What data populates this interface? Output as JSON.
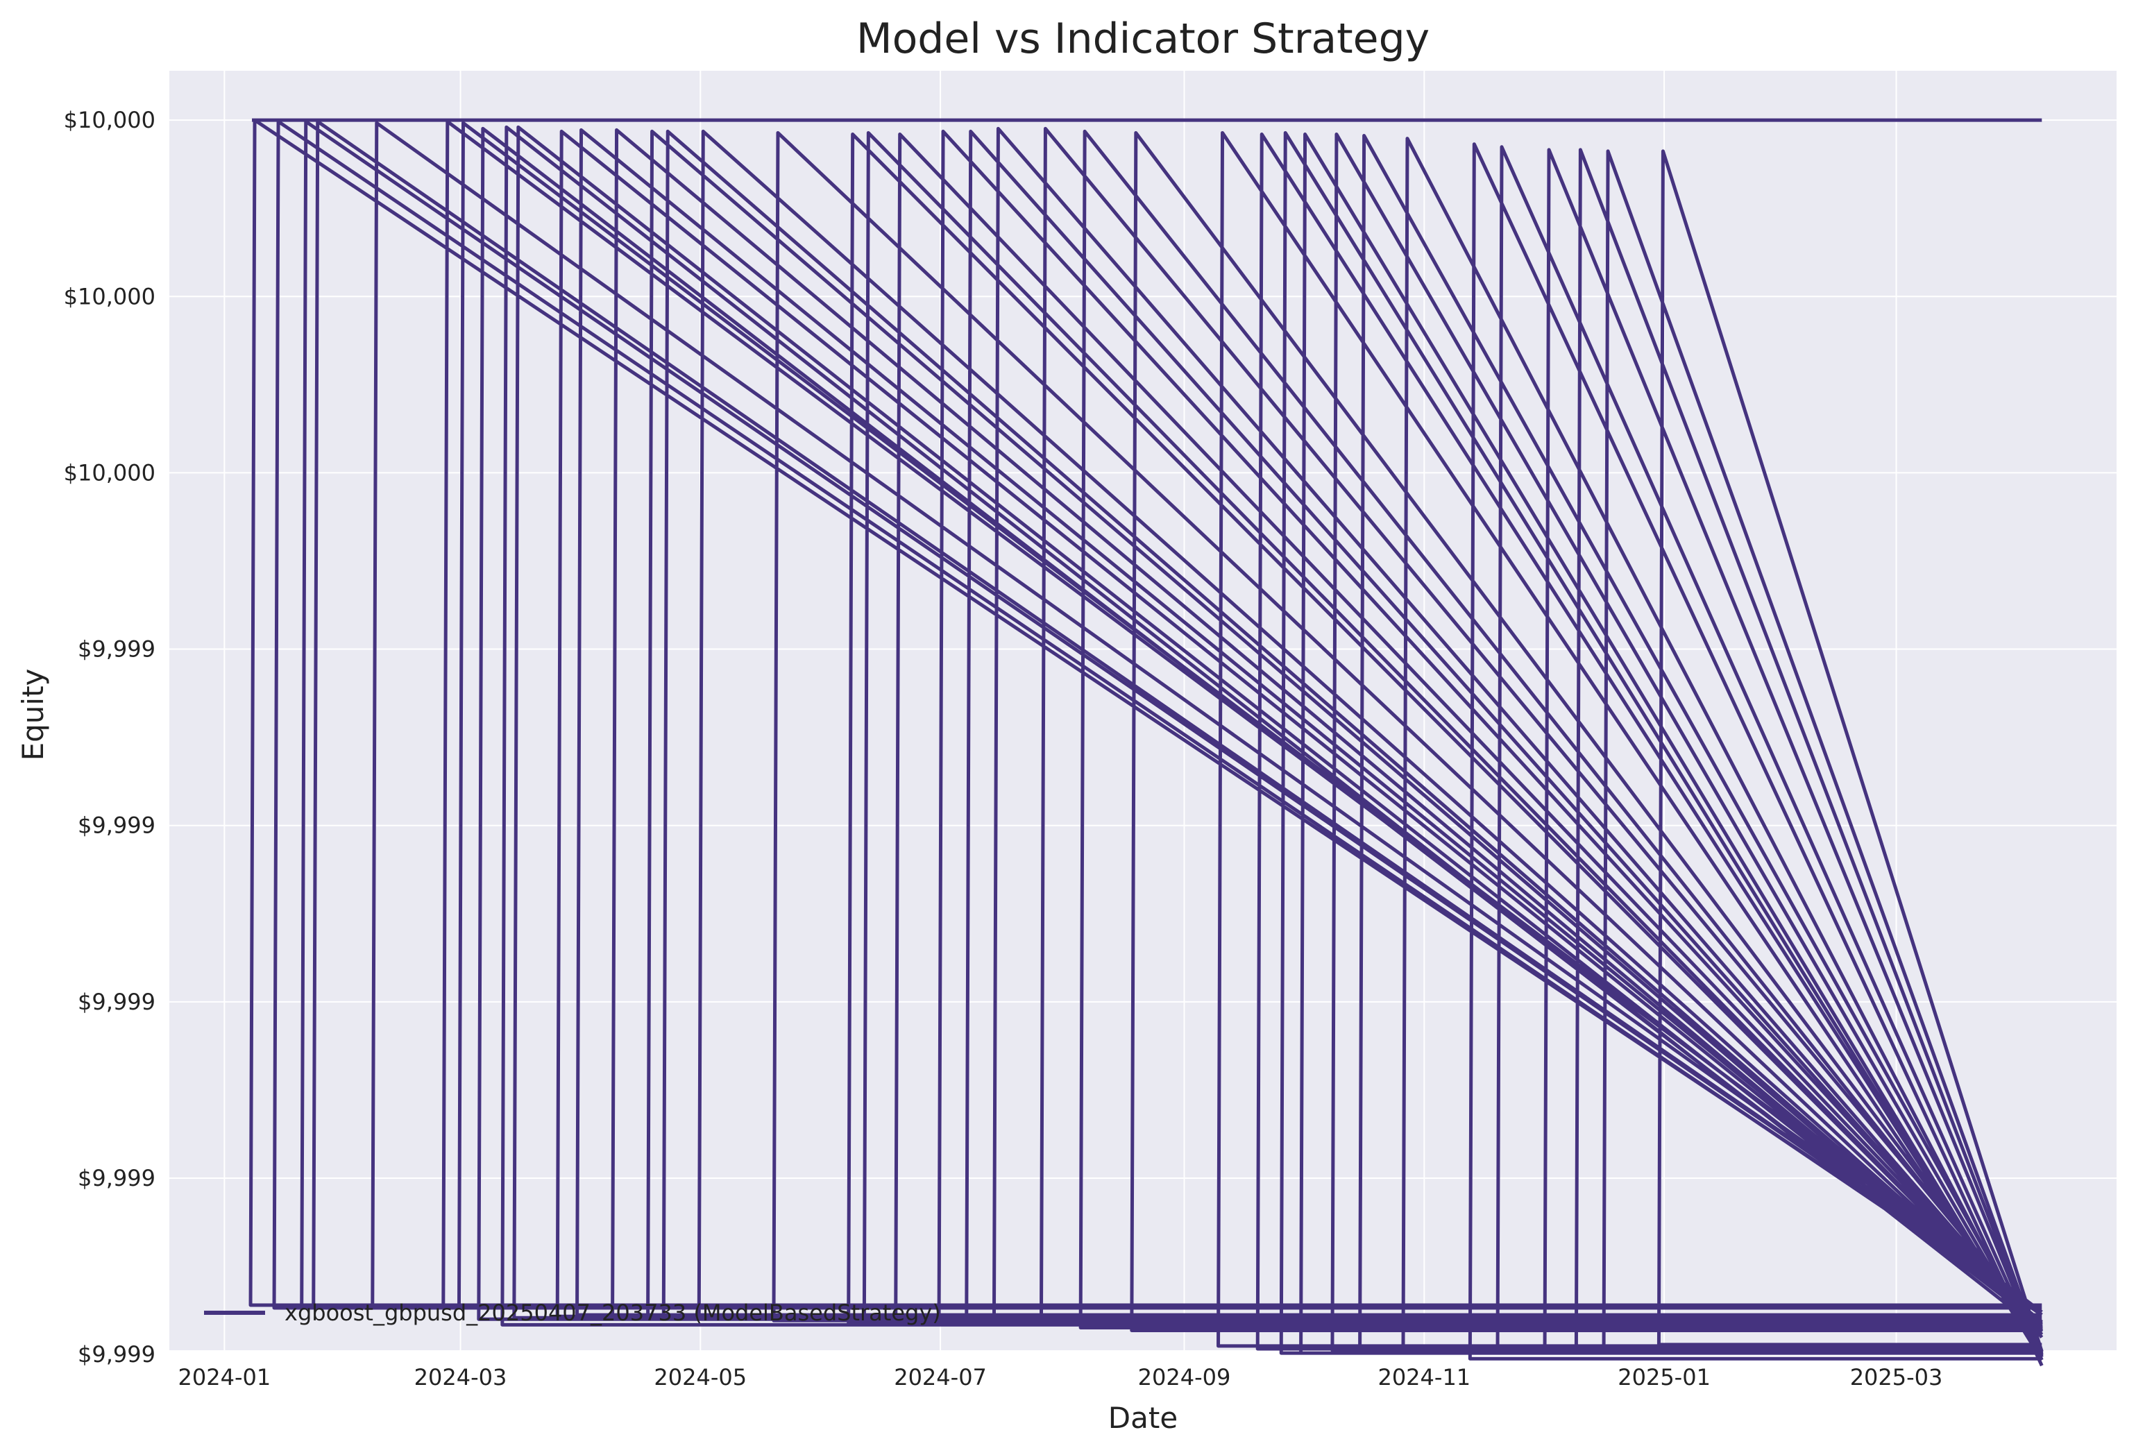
{
  "chart_data": {
    "type": "line",
    "title": "Model vs Indicator Strategy",
    "xlabel": "Date",
    "ylabel": "Equity",
    "x_ticks": [
      "2024-01",
      "2024-03",
      "2024-05",
      "2024-07",
      "2024-09",
      "2024-11",
      "2025-01",
      "2025-03"
    ],
    "y_ticks": [
      "$10,000",
      "$10,000",
      "$10,000",
      "$9,999",
      "$9,999",
      "$9,999",
      "$9,999",
      "$9,999"
    ],
    "xlim": [
      "2023-12-18",
      "2025-04-26"
    ],
    "ylim": [
      9999.128,
      10000.035
    ],
    "grid": true,
    "legend": {
      "position": "lower-left",
      "entries": [
        "xgboost_gbpusd_20250407_203733 (ModelBasedStrategy)"
      ]
    },
    "colors": {
      "line": "#45337f",
      "plot_bg": "#eaeaf2",
      "grid": "#ffffff"
    },
    "series": [
      {
        "name": "xgboost_gbpusd_20250407_203733 (ModelBasedStrategy)",
        "end_date": "2025-04-07",
        "baseline": 10000.0,
        "trades": [
          {
            "entry": "2024-01-08",
            "peak": 10000.0,
            "low": 9999.16
          },
          {
            "entry": "2024-01-14",
            "peak": 9999.999,
            "low": 9999.158
          },
          {
            "entry": "2024-01-21",
            "peak": 9999.999,
            "low": 9999.16
          },
          {
            "entry": "2024-01-24",
            "peak": 9999.999,
            "low": 9999.16
          },
          {
            "entry": "2024-02-08",
            "peak": 9999.998,
            "low": 9999.16
          },
          {
            "entry": "2024-02-26",
            "peak": 9999.999,
            "low": 9999.16
          },
          {
            "entry": "2024-03-01",
            "peak": 9999.998,
            "low": 9999.158
          },
          {
            "entry": "2024-03-06",
            "peak": 9999.994,
            "low": 9999.15
          },
          {
            "entry": "2024-03-12",
            "peak": 9999.995,
            "low": 9999.146
          },
          {
            "entry": "2024-03-15",
            "peak": 9999.995,
            "low": 9999.151
          },
          {
            "entry": "2024-03-26",
            "peak": 9999.992,
            "low": 9999.152
          },
          {
            "entry": "2024-03-31",
            "peak": 9999.993,
            "low": 9999.153
          },
          {
            "entry": "2024-04-09",
            "peak": 9999.993,
            "low": 9999.15
          },
          {
            "entry": "2024-04-18",
            "peak": 9999.992,
            "low": 9999.15
          },
          {
            "entry": "2024-04-22",
            "peak": 9999.992,
            "low": 9999.151
          },
          {
            "entry": "2024-05-01",
            "peak": 9999.992,
            "low": 9999.151
          },
          {
            "entry": "2024-05-20",
            "peak": 9999.991,
            "low": 9999.149
          },
          {
            "entry": "2024-06-08",
            "peak": 9999.99,
            "low": 9999.147
          },
          {
            "entry": "2024-06-12",
            "peak": 9999.991,
            "low": 9999.147
          },
          {
            "entry": "2024-06-20",
            "peak": 9999.99,
            "low": 9999.148
          },
          {
            "entry": "2024-07-01",
            "peak": 9999.992,
            "low": 9999.147
          },
          {
            "entry": "2024-07-08",
            "peak": 9999.992,
            "low": 9999.146
          },
          {
            "entry": "2024-07-15",
            "peak": 9999.994,
            "low": 9999.146
          },
          {
            "entry": "2024-07-27",
            "peak": 9999.994,
            "low": 9999.147
          },
          {
            "entry": "2024-08-06",
            "peak": 9999.992,
            "low": 9999.144
          },
          {
            "entry": "2024-08-19",
            "peak": 9999.991,
            "low": 9999.142
          },
          {
            "entry": "2024-09-10",
            "peak": 9999.991,
            "low": 9999.131
          },
          {
            "entry": "2024-09-20",
            "peak": 9999.99,
            "low": 9999.129
          },
          {
            "entry": "2024-09-26",
            "peak": 9999.991,
            "low": 9999.126
          },
          {
            "entry": "2024-10-01",
            "peak": 9999.99,
            "low": 9999.126
          },
          {
            "entry": "2024-10-09",
            "peak": 9999.99,
            "low": 9999.128
          },
          {
            "entry": "2024-10-16",
            "peak": 9999.989,
            "low": 9999.131
          },
          {
            "entry": "2024-10-27",
            "peak": 9999.987,
            "low": 9999.126
          },
          {
            "entry": "2024-11-13",
            "peak": 9999.983,
            "low": 9999.122
          },
          {
            "entry": "2024-11-20",
            "peak": 9999.981,
            "low": 9999.126
          },
          {
            "entry": "2024-12-02",
            "peak": 9999.979,
            "low": 9999.128
          },
          {
            "entry": "2024-12-10",
            "peak": 9999.979,
            "low": 9999.129
          },
          {
            "entry": "2024-12-17",
            "peak": 9999.978,
            "low": 9999.13
          },
          {
            "entry": "2024-12-31",
            "peak": 9999.978,
            "low": 9999.132
          }
        ]
      }
    ]
  }
}
